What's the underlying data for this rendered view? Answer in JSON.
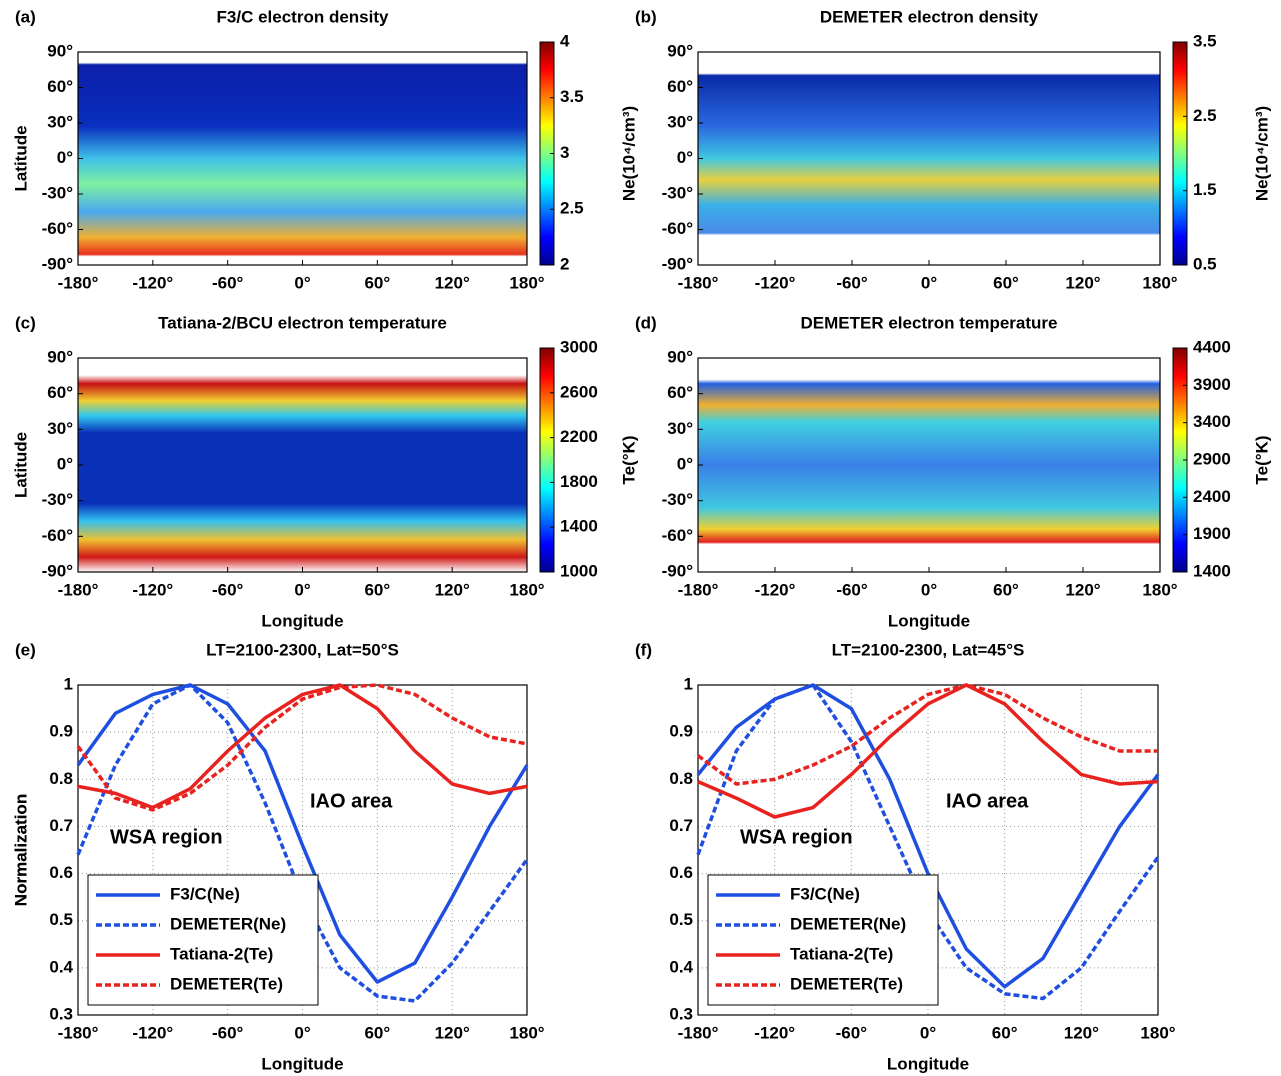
{
  "chart_data": [
    {
      "type": "map",
      "panel_label": "(a)",
      "title": "F3/C electron density",
      "ylabel": "Latitude",
      "xlim": [
        -180,
        180
      ],
      "ylim": [
        -90,
        90
      ],
      "colormap": "jet",
      "xticks": [
        {
          "value": -180,
          "label": "-180°"
        },
        {
          "value": -120,
          "label": "-120°"
        },
        {
          "value": -60,
          "label": "-60°"
        },
        {
          "value": 0,
          "label": "0°"
        },
        {
          "value": 60,
          "label": "60°"
        },
        {
          "value": 120,
          "label": "120°"
        },
        {
          "value": 180,
          "label": "180°"
        }
      ],
      "yticks": [
        {
          "value": 90,
          "label": "90°"
        },
        {
          "value": 60,
          "label": "60°"
        },
        {
          "value": 30,
          "label": "30°"
        },
        {
          "value": 0,
          "label": "0°"
        },
        {
          "value": -30,
          "label": "-30°"
        },
        {
          "value": -60,
          "label": "-60°"
        },
        {
          "value": -90,
          "label": "-90°"
        }
      ],
      "colorbar_label": "Ne(10⁴/cm³)",
      "clim": [
        2,
        4
      ],
      "cticks": [
        2,
        2.5,
        3,
        3.5,
        4
      ]
    },
    {
      "type": "map",
      "panel_label": "(b)",
      "title": "DEMETER electron density",
      "xlim": [
        -180,
        180
      ],
      "ylim": [
        -90,
        90
      ],
      "colormap": "jet",
      "xticks": [
        {
          "value": -180,
          "label": "-180°"
        },
        {
          "value": -120,
          "label": "-120°"
        },
        {
          "value": -60,
          "label": "-60°"
        },
        {
          "value": 0,
          "label": "0°"
        },
        {
          "value": 60,
          "label": "60°"
        },
        {
          "value": 120,
          "label": "120°"
        },
        {
          "value": 180,
          "label": "180°"
        }
      ],
      "yticks": [
        {
          "value": 90,
          "label": "90°"
        },
        {
          "value": 60,
          "label": "60°"
        },
        {
          "value": 30,
          "label": "30°"
        },
        {
          "value": 0,
          "label": "0°"
        },
        {
          "value": -30,
          "label": "-30°"
        },
        {
          "value": -60,
          "label": "-60°"
        },
        {
          "value": -90,
          "label": "-90°"
        }
      ],
      "colorbar_label": "Ne(10⁴/cm³)",
      "clim": [
        0.5,
        3.5
      ],
      "cticks": [
        0.5,
        1.5,
        2.5,
        3.5
      ]
    },
    {
      "type": "map",
      "panel_label": "(c)",
      "title": "Tatiana-2/BCU electron temperature",
      "ylabel": "Latitude",
      "xlabel": "Longitude",
      "xlim": [
        -180,
        180
      ],
      "ylim": [
        -90,
        90
      ],
      "colormap": "jet",
      "xticks": [
        {
          "value": -180,
          "label": "-180°"
        },
        {
          "value": -120,
          "label": "-120°"
        },
        {
          "value": -60,
          "label": "-60°"
        },
        {
          "value": 0,
          "label": "0°"
        },
        {
          "value": 60,
          "label": "60°"
        },
        {
          "value": 120,
          "label": "120°"
        },
        {
          "value": 180,
          "label": "180°"
        }
      ],
      "yticks": [
        {
          "value": 90,
          "label": "90°"
        },
        {
          "value": 60,
          "label": "60°"
        },
        {
          "value": 30,
          "label": "30°"
        },
        {
          "value": 0,
          "label": "0°"
        },
        {
          "value": -30,
          "label": "-30°"
        },
        {
          "value": -60,
          "label": "-60°"
        },
        {
          "value": -90,
          "label": "-90°"
        }
      ],
      "colorbar_label": "Te(°K)",
      "clim": [
        1000,
        3000
      ],
      "cticks": [
        1000,
        1400,
        1800,
        2200,
        2600,
        3000
      ]
    },
    {
      "type": "map",
      "panel_label": "(d)",
      "title": "DEMETER electron temperature",
      "xlabel": "Longitude",
      "xlim": [
        -180,
        180
      ],
      "ylim": [
        -90,
        90
      ],
      "colormap": "jet",
      "xticks": [
        {
          "value": -180,
          "label": "-180°"
        },
        {
          "value": -120,
          "label": "-120°"
        },
        {
          "value": -60,
          "label": "-60°"
        },
        {
          "value": 0,
          "label": "0°"
        },
        {
          "value": 60,
          "label": "60°"
        },
        {
          "value": 120,
          "label": "120°"
        },
        {
          "value": 180,
          "label": "180°"
        }
      ],
      "yticks": [
        {
          "value": 90,
          "label": "90°"
        },
        {
          "value": 60,
          "label": "60°"
        },
        {
          "value": 30,
          "label": "30°"
        },
        {
          "value": 0,
          "label": "0°"
        },
        {
          "value": -30,
          "label": "-30°"
        },
        {
          "value": -60,
          "label": "-60°"
        },
        {
          "value": -90,
          "label": "-90°"
        }
      ],
      "colorbar_label": "Te(°K)",
      "clim": [
        1400,
        4400
      ],
      "cticks": [
        1400,
        1900,
        2400,
        2900,
        3400,
        3900,
        4400
      ]
    },
    {
      "type": "line",
      "panel_label": "(e)",
      "title": "LT=2100-2300, Lat=50°S",
      "xlabel": "Longitude",
      "ylabel": "Normalization",
      "xlim": [
        -180,
        180
      ],
      "ylim": [
        0.3,
        1
      ],
      "grid": true,
      "legend": "lower left",
      "xticks": [
        {
          "value": -180,
          "label": "-180°"
        },
        {
          "value": -120,
          "label": "-120°"
        },
        {
          "value": -60,
          "label": "-60°"
        },
        {
          "value": 0,
          "label": "0°"
        },
        {
          "value": 60,
          "label": "60°"
        },
        {
          "value": 120,
          "label": "120°"
        },
        {
          "value": 180,
          "label": "180°"
        }
      ],
      "yticks": [
        0.3,
        0.4,
        0.5,
        0.6,
        0.7,
        0.8,
        0.9,
        1
      ],
      "annotations": [
        "WSA region",
        "IAO area"
      ],
      "x": [
        -180,
        -150,
        -120,
        -90,
        -60,
        -30,
        0,
        30,
        60,
        90,
        120,
        150,
        180
      ],
      "series": [
        {
          "name": "F3/C(Ne)",
          "color": "#1f4fe0",
          "style": "solid",
          "values": [
            0.83,
            0.94,
            0.98,
            1.0,
            0.96,
            0.86,
            0.66,
            0.47,
            0.37,
            0.41,
            0.55,
            0.7,
            0.83
          ]
        },
        {
          "name": "DEMETER(Ne)",
          "color": "#1f4fe0",
          "style": "dashed",
          "values": [
            0.64,
            0.83,
            0.96,
            1.0,
            0.92,
            0.75,
            0.55,
            0.4,
            0.34,
            0.33,
            0.41,
            0.52,
            0.63
          ]
        },
        {
          "name": "Tatiana-2(Te)",
          "color": "#e8231f",
          "style": "solid",
          "values": [
            0.785,
            0.77,
            0.74,
            0.78,
            0.86,
            0.93,
            0.98,
            1.0,
            0.95,
            0.86,
            0.79,
            0.77,
            0.785
          ]
        },
        {
          "name": "DEMETER(Te)",
          "color": "#e8231f",
          "style": "dashed",
          "values": [
            0.87,
            0.76,
            0.735,
            0.77,
            0.83,
            0.91,
            0.97,
            0.995,
            1.0,
            0.98,
            0.93,
            0.89,
            0.875
          ]
        }
      ]
    },
    {
      "type": "line",
      "panel_label": "(f)",
      "title": "LT=2100-2300, Lat=45°S",
      "xlabel": "Longitude",
      "ylabel": "Normalization",
      "xlim": [
        -180,
        180
      ],
      "ylim": [
        0.3,
        1
      ],
      "grid": true,
      "legend": "lower left",
      "xticks": [
        {
          "value": -180,
          "label": "-180°"
        },
        {
          "value": -120,
          "label": "-120°"
        },
        {
          "value": -60,
          "label": "-60°"
        },
        {
          "value": 0,
          "label": "0°"
        },
        {
          "value": 60,
          "label": "60°"
        },
        {
          "value": 120,
          "label": "120°"
        },
        {
          "value": 180,
          "label": "180°"
        }
      ],
      "yticks": [
        0.3,
        0.4,
        0.5,
        0.6,
        0.7,
        0.8,
        0.9,
        1
      ],
      "annotations": [
        "WSA region",
        "IAO area"
      ],
      "x": [
        -180,
        -150,
        -120,
        -90,
        -60,
        -30,
        0,
        30,
        60,
        90,
        120,
        150,
        180
      ],
      "series": [
        {
          "name": "F3/C(Ne)",
          "color": "#1f4fe0",
          "style": "solid",
          "values": [
            0.81,
            0.91,
            0.97,
            1.0,
            0.95,
            0.8,
            0.6,
            0.44,
            0.36,
            0.42,
            0.56,
            0.7,
            0.81
          ]
        },
        {
          "name": "DEMETER(Ne)",
          "color": "#1f4fe0",
          "style": "dashed",
          "values": [
            0.64,
            0.86,
            0.97,
            1.0,
            0.88,
            0.7,
            0.52,
            0.4,
            0.345,
            0.335,
            0.4,
            0.52,
            0.635
          ]
        },
        {
          "name": "Tatiana-2(Te)",
          "color": "#e8231f",
          "style": "solid",
          "values": [
            0.795,
            0.76,
            0.72,
            0.74,
            0.81,
            0.89,
            0.96,
            1.0,
            0.96,
            0.88,
            0.81,
            0.79,
            0.795
          ]
        },
        {
          "name": "DEMETER(Te)",
          "color": "#e8231f",
          "style": "dashed",
          "values": [
            0.85,
            0.79,
            0.8,
            0.83,
            0.87,
            0.93,
            0.98,
            1.0,
            0.98,
            0.93,
            0.89,
            0.86,
            0.86
          ]
        }
      ]
    }
  ]
}
